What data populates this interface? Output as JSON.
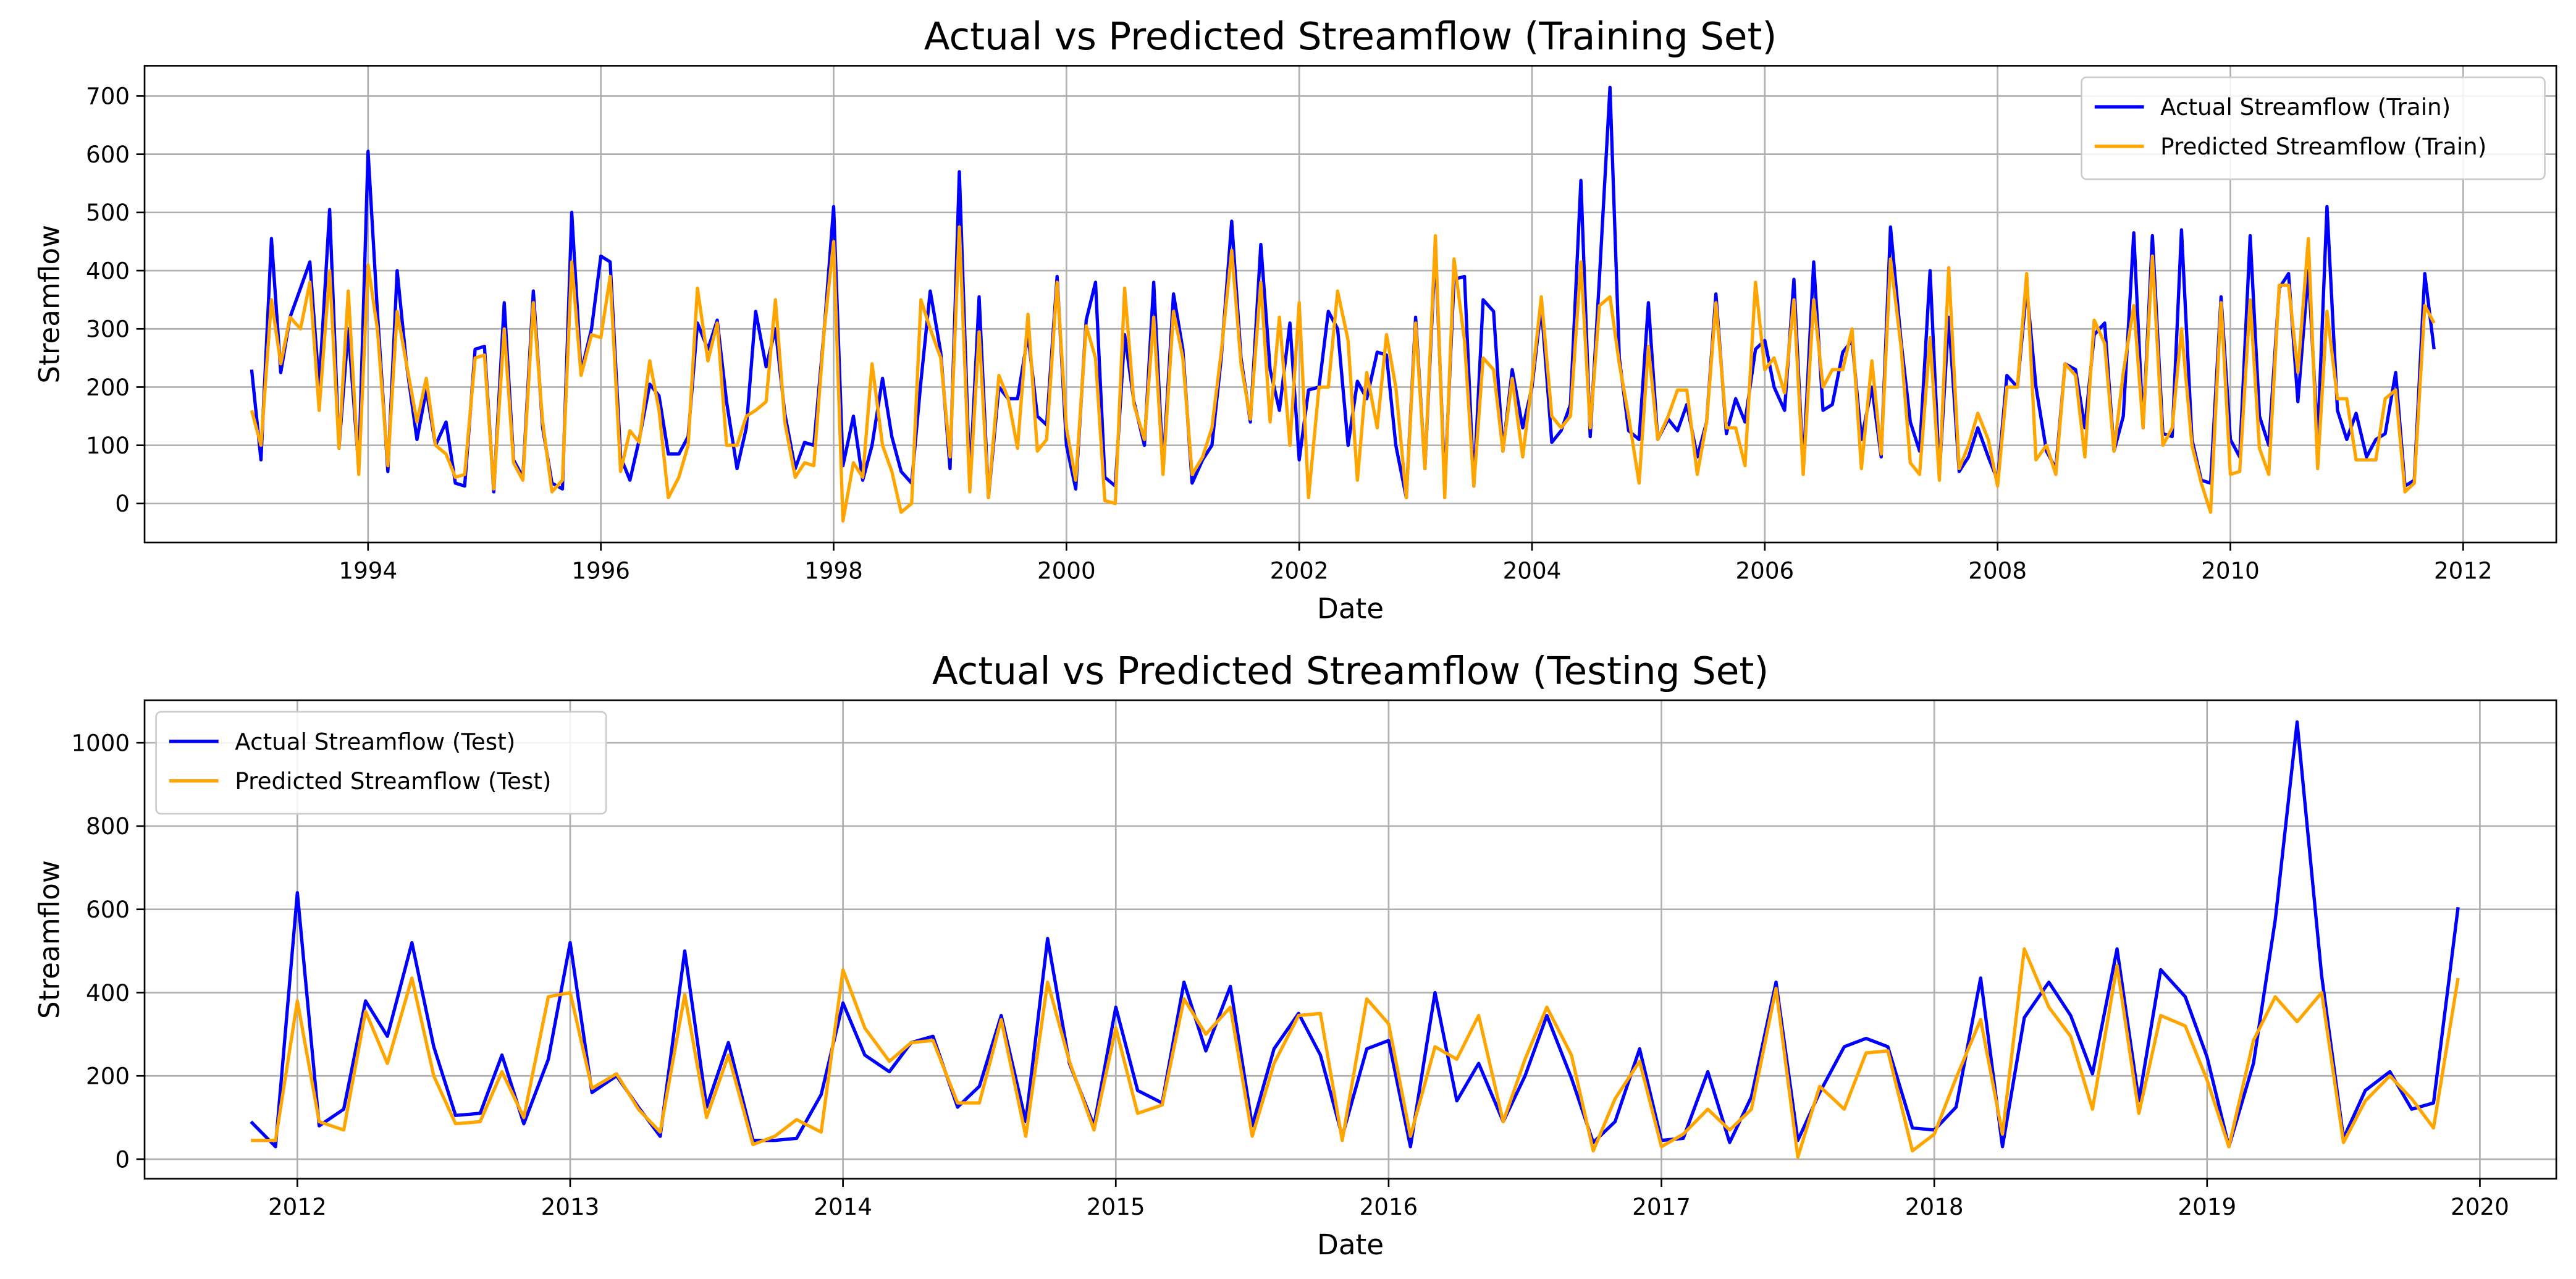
{
  "chart_data": [
    {
      "type": "line",
      "title": "Actual vs Predicted Streamflow (Training Set)",
      "xlabel": "Date",
      "ylabel": "Streamflow",
      "x": [
        1993.0,
        1993.08,
        1993.17,
        1993.25,
        1993.33,
        1993.42,
        1993.5,
        1993.58,
        1993.67,
        1993.75,
        1993.83,
        1993.92,
        1994.0,
        1994.08,
        1994.17,
        1994.25,
        1994.33,
        1994.42,
        1994.5,
        1994.58,
        1994.67,
        1994.75,
        1994.83,
        1994.92,
        1995.0,
        1995.08,
        1995.17,
        1995.25,
        1995.33,
        1995.42,
        1995.5,
        1995.58,
        1995.67,
        1995.75,
        1995.83,
        1995.92,
        1996.0,
        1996.08,
        1996.17,
        1996.25,
        1996.33,
        1996.42,
        1996.5,
        1996.58,
        1996.67,
        1996.75,
        1996.83,
        1996.92,
        1997.0,
        1997.08,
        1997.17,
        1997.25,
        1997.33,
        1997.42,
        1997.5,
        1997.58,
        1997.67,
        1997.75,
        1997.83,
        1997.92,
        1998.0,
        1998.08,
        1998.17,
        1998.25,
        1998.33,
        1998.42,
        1998.5,
        1998.58,
        1998.67,
        1998.75,
        1998.83,
        1998.92,
        1999.0,
        1999.08,
        1999.17,
        1999.25,
        1999.33,
        1999.42,
        1999.5,
        1999.58,
        1999.67,
        1999.75,
        1999.83,
        1999.92,
        2000.0,
        2000.08,
        2000.17,
        2000.25,
        2000.33,
        2000.42,
        2000.5,
        2000.58,
        2000.67,
        2000.75,
        2000.83,
        2000.92,
        2001.0,
        2001.08,
        2001.17,
        2001.25,
        2001.33,
        2001.42,
        2001.5,
        2001.58,
        2001.67,
        2001.75,
        2001.83,
        2001.92,
        2002.0,
        2002.08,
        2002.17,
        2002.25,
        2002.33,
        2002.42,
        2002.5,
        2002.58,
        2002.67,
        2002.75,
        2002.83,
        2002.92,
        2003.0,
        2003.08,
        2003.17,
        2003.25,
        2003.33,
        2003.42,
        2003.5,
        2003.58,
        2003.67,
        2003.75,
        2003.83,
        2003.92,
        2004.0,
        2004.08,
        2004.17,
        2004.25,
        2004.33,
        2004.42,
        2004.5,
        2004.58,
        2004.67,
        2004.75,
        2004.83,
        2004.92,
        2005.0,
        2005.08,
        2005.17,
        2005.25,
        2005.33,
        2005.42,
        2005.5,
        2005.58,
        2005.67,
        2005.75,
        2005.83,
        2005.92,
        2006.0,
        2006.08,
        2006.17,
        2006.25,
        2006.33,
        2006.42,
        2006.5,
        2006.58,
        2006.67,
        2006.75,
        2006.83,
        2006.92,
        2007.0,
        2007.08,
        2007.17,
        2007.25,
        2007.33,
        2007.42,
        2007.5,
        2007.58,
        2007.67,
        2007.75,
        2007.83,
        2007.92,
        2008.0,
        2008.08,
        2008.17,
        2008.25,
        2008.33,
        2008.42,
        2008.5,
        2008.58,
        2008.67,
        2008.75,
        2008.83,
        2008.92,
        2009.0,
        2009.08,
        2009.17,
        2009.25,
        2009.33,
        2009.42,
        2009.5,
        2009.58,
        2009.67,
        2009.75,
        2009.83,
        2009.92,
        2010.0,
        2010.08,
        2010.17,
        2010.25,
        2010.33,
        2010.42,
        2010.5,
        2010.58,
        2010.67,
        2010.75,
        2010.83,
        2010.92,
        2011.0,
        2011.08,
        2011.17,
        2011.25,
        2011.33,
        2011.42,
        2011.5,
        2011.58,
        2011.67,
        2011.75
      ],
      "series": [
        {
          "name": "Actual Streamflow (Train)",
          "color": "#0000ff",
          "values": [
            230,
            75,
            455,
            225,
            320,
            370,
            415,
            200,
            505,
            95,
            300,
            60,
            605,
            330,
            55,
            400,
            240,
            110,
            195,
            100,
            140,
            35,
            30,
            265,
            270,
            20,
            345,
            75,
            45,
            365,
            130,
            35,
            25,
            500,
            225,
            300,
            425,
            415,
            80,
            40,
            110,
            205,
            185,
            85,
            85,
            115,
            310,
            265,
            315,
            175,
            60,
            130,
            330,
            235,
            300,
            155,
            60,
            105,
            100,
            300,
            510,
            65,
            150,
            40,
            100,
            215,
            115,
            55,
            35,
            210,
            365,
            260,
            60,
            570,
            35,
            355,
            10,
            200,
            180,
            180,
            290,
            150,
            135,
            390,
            100,
            25,
            315,
            380,
            45,
            30,
            290,
            175,
            100,
            380,
            60,
            360,
            265,
            35,
            75,
            100,
            250,
            485,
            250,
            140,
            445,
            230,
            160,
            310,
            75,
            195,
            200,
            330,
            300,
            100,
            210,
            180,
            260,
            255,
            100,
            10,
            320,
            60,
            440,
            30,
            385,
            390,
            30,
            350,
            330,
            90,
            230,
            130,
            200,
            340,
            105,
            125,
            170,
            555,
            115,
            390,
            715,
            250,
            125,
            110,
            345,
            110,
            145,
            125,
            170,
            80,
            140,
            360,
            120,
            180,
            140,
            265,
            280,
            200,
            160,
            385,
            60,
            415,
            160,
            170,
            260,
            280,
            110,
            200,
            80,
            475,
            280,
            140,
            90,
            400,
            50,
            320,
            55,
            80,
            130,
            80,
            40,
            220,
            200,
            370,
            200,
            90,
            60,
            240,
            230,
            130,
            290,
            310,
            90,
            150,
            465,
            130,
            460,
            120,
            115,
            470,
            110,
            40,
            35,
            355,
            110,
            80,
            460,
            150,
            100,
            370,
            395,
            175,
            400,
            110,
            510,
            160,
            110,
            155,
            80,
            110,
            120,
            225,
            30,
            40,
            395,
            265
          ]
        },
        {
          "name": "Predicted Streamflow (Train)",
          "color": "#ffa500",
          "values": [
            160,
            100,
            350,
            240,
            320,
            300,
            380,
            160,
            400,
            95,
            365,
            50,
            410,
            300,
            65,
            330,
            240,
            140,
            215,
            100,
            85,
            45,
            50,
            250,
            255,
            25,
            300,
            70,
            40,
            345,
            140,
            20,
            40,
            415,
            220,
            290,
            285,
            390,
            55,
            125,
            105,
            245,
            160,
            10,
            45,
            100,
            370,
            245,
            310,
            100,
            100,
            150,
            160,
            175,
            350,
            140,
            45,
            70,
            65,
            300,
            450,
            -30,
            70,
            45,
            240,
            100,
            55,
            -15,
            0,
            350,
            300,
            250,
            80,
            475,
            20,
            295,
            10,
            220,
            180,
            95,
            325,
            90,
            110,
            380,
            130,
            40,
            305,
            250,
            5,
            0,
            370,
            170,
            110,
            320,
            50,
            330,
            250,
            50,
            80,
            130,
            260,
            435,
            240,
            145,
            380,
            140,
            320,
            100,
            345,
            10,
            200,
            200,
            365,
            280,
            40,
            225,
            130,
            290,
            200,
            10,
            310,
            60,
            460,
            10,
            420,
            280,
            30,
            250,
            230,
            90,
            215,
            80,
            210,
            355,
            150,
            130,
            150,
            415,
            130,
            340,
            355,
            240,
            150,
            35,
            270,
            110,
            150,
            195,
            195,
            50,
            140,
            345,
            130,
            130,
            65,
            380,
            230,
            250,
            190,
            350,
            50,
            350,
            200,
            230,
            230,
            300,
            60,
            245,
            85,
            420,
            270,
            70,
            50,
            285,
            40,
            405,
            60,
            100,
            155,
            110,
            30,
            200,
            200,
            395,
            75,
            100,
            50,
            240,
            220,
            80,
            315,
            275,
            90,
            225,
            340,
            130,
            425,
            100,
            130,
            300,
            100,
            35,
            -15,
            345,
            50,
            55,
            350,
            95,
            50,
            375,
            375,
            225,
            455,
            60,
            330,
            180,
            180,
            75,
            75,
            75,
            180,
            195,
            20,
            35,
            340,
            310
          ]
        }
      ],
      "xlim": [
        1992.08,
        2012.8
      ],
      "xticks": [
        1994,
        1996,
        1998,
        2000,
        2002,
        2004,
        2006,
        2008,
        2010,
        2012
      ],
      "ylim": [
        -67,
        752
      ],
      "yticks": [
        0,
        100,
        200,
        300,
        400,
        500,
        600,
        700
      ],
      "grid": true,
      "legend": "upper right"
    },
    {
      "type": "line",
      "title": "Actual vs Predicted Streamflow (Testing Set)",
      "xlabel": "Date",
      "ylabel": "Streamflow",
      "x": [
        2011.83,
        2011.92,
        2012.0,
        2012.08,
        2012.17,
        2012.25,
        2012.33,
        2012.42,
        2012.5,
        2012.58,
        2012.67,
        2012.75,
        2012.83,
        2012.92,
        2013.0,
        2013.08,
        2013.17,
        2013.25,
        2013.33,
        2013.42,
        2013.5,
        2013.58,
        2013.67,
        2013.75,
        2013.83,
        2013.92,
        2014.0,
        2014.08,
        2014.17,
        2014.25,
        2014.33,
        2014.42,
        2014.5,
        2014.58,
        2014.67,
        2014.75,
        2014.83,
        2014.92,
        2015.0,
        2015.08,
        2015.17,
        2015.25,
        2015.33,
        2015.42,
        2015.5,
        2015.58,
        2015.67,
        2015.75,
        2015.83,
        2015.92,
        2016.0,
        2016.08,
        2016.17,
        2016.25,
        2016.33,
        2016.42,
        2016.5,
        2016.58,
        2016.67,
        2016.75,
        2016.83,
        2016.92,
        2017.0,
        2017.08,
        2017.17,
        2017.25,
        2017.33,
        2017.42,
        2017.5,
        2017.58,
        2017.67,
        2017.75,
        2017.83,
        2017.92,
        2018.0,
        2018.08,
        2018.17,
        2018.25,
        2018.33,
        2018.42,
        2018.5,
        2018.58,
        2018.67,
        2018.75,
        2018.83,
        2018.92,
        2019.0,
        2019.08,
        2019.17,
        2019.25,
        2019.33,
        2019.42,
        2019.5,
        2019.58,
        2019.67,
        2019.75,
        2019.83,
        2019.92
      ],
      "series": [
        {
          "name": "Actual Streamflow (Test)",
          "color": "#0000ff",
          "values": [
            90,
            30,
            640,
            80,
            120,
            380,
            295,
            520,
            270,
            105,
            110,
            250,
            85,
            240,
            520,
            160,
            200,
            125,
            55,
            500,
            125,
            280,
            45,
            45,
            50,
            155,
            375,
            250,
            210,
            280,
            295,
            125,
            175,
            345,
            90,
            530,
            230,
            80,
            365,
            165,
            135,
            425,
            260,
            415,
            80,
            265,
            350,
            250,
            55,
            265,
            285,
            30,
            400,
            140,
            230,
            90,
            200,
            345,
            195,
            40,
            90,
            265,
            45,
            50,
            210,
            40,
            150,
            425,
            45,
            160,
            270,
            290,
            270,
            75,
            70,
            125,
            435,
            30,
            340,
            425,
            345,
            205,
            505,
            140,
            455,
            390,
            245,
            30,
            230,
            575,
            1050,
            440,
            50,
            165,
            210,
            120,
            135,
            605
          ]
        },
        {
          "name": "Predicted Streamflow (Test)",
          "color": "#ffa500",
          "values": [
            45,
            45,
            380,
            90,
            70,
            355,
            230,
            435,
            200,
            85,
            90,
            210,
            100,
            390,
            400,
            170,
            205,
            120,
            65,
            395,
            100,
            250,
            35,
            55,
            95,
            65,
            455,
            315,
            235,
            280,
            285,
            135,
            135,
            335,
            55,
            425,
            235,
            70,
            315,
            110,
            130,
            385,
            300,
            365,
            55,
            230,
            345,
            350,
            45,
            385,
            325,
            55,
            270,
            240,
            345,
            90,
            240,
            365,
            250,
            20,
            145,
            235,
            30,
            60,
            120,
            70,
            120,
            410,
            5,
            175,
            120,
            255,
            260,
            20,
            60,
            195,
            335,
            60,
            505,
            365,
            295,
            120,
            465,
            110,
            345,
            320,
            190,
            30,
            285,
            390,
            330,
            400,
            40,
            140,
            200,
            145,
            75,
            435
          ]
        }
      ],
      "xlim": [
        2011.44,
        2020.28
      ],
      "xticks": [
        2012,
        2013,
        2014,
        2015,
        2016,
        2017,
        2018,
        2019,
        2020
      ],
      "ylim": [
        -47,
        1102
      ],
      "yticks": [
        0,
        200,
        400,
        600,
        800,
        1000
      ],
      "grid": true,
      "legend": "upper left"
    }
  ]
}
